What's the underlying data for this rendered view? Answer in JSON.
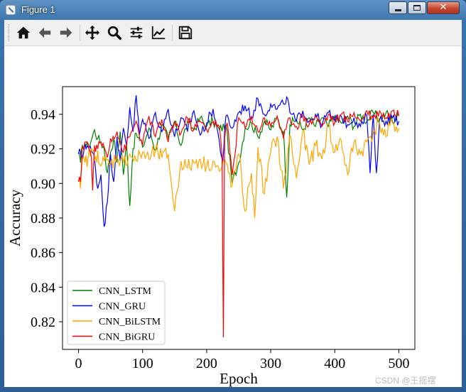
{
  "window": {
    "title": "Figure 1",
    "close_glyph": "✕"
  },
  "toolbar": {
    "icons": [
      "home-icon",
      "back-arrow-icon",
      "forward-arrow-icon",
      "pan-move-icon",
      "zoom-magnifier-icon",
      "configure-subplots-icon",
      "edit-axis-icon",
      "save-floppy-icon"
    ]
  },
  "watermark": "CSDN @王摇摆",
  "chart_data": {
    "type": "line",
    "xlabel": "Epoch",
    "ylabel": "Accuracy",
    "xlim": [
      -25,
      525
    ],
    "ylim": [
      0.804,
      0.956
    ],
    "xticks": [
      0,
      100,
      200,
      300,
      400,
      500
    ],
    "yticks": [
      0.82,
      0.84,
      0.86,
      0.88,
      0.9,
      0.92,
      0.94
    ],
    "ytick_labels": [
      "0.82",
      "0.84",
      "0.86",
      "0.88",
      "0.90",
      "0.92",
      "0.94"
    ],
    "legend_placement": "lower-left",
    "grid": false,
    "series": [
      {
        "name": "CNN_LSTM",
        "color": "#008000",
        "points": [
          [
            0,
            0.918
          ],
          [
            3,
            0.912
          ],
          [
            6,
            0.922
          ],
          [
            10,
            0.923
          ],
          [
            15,
            0.921
          ],
          [
            20,
            0.925
          ],
          [
            25,
            0.931
          ],
          [
            30,
            0.926
          ],
          [
            35,
            0.924
          ],
          [
            40,
            0.92
          ],
          [
            45,
            0.906
          ],
          [
            50,
            0.918
          ],
          [
            55,
            0.926
          ],
          [
            60,
            0.912
          ],
          [
            65,
            0.93
          ],
          [
            70,
            0.905
          ],
          [
            75,
            0.923
          ],
          [
            80,
            0.887
          ],
          [
            85,
            0.92
          ],
          [
            90,
            0.929
          ],
          [
            100,
            0.921
          ],
          [
            110,
            0.932
          ],
          [
            120,
            0.919
          ],
          [
            130,
            0.934
          ],
          [
            140,
            0.926
          ],
          [
            150,
            0.936
          ],
          [
            160,
            0.922
          ],
          [
            170,
            0.936
          ],
          [
            180,
            0.931
          ],
          [
            190,
            0.938
          ],
          [
            200,
            0.933
          ],
          [
            210,
            0.936
          ],
          [
            220,
            0.931
          ],
          [
            230,
            0.934
          ],
          [
            240,
            0.9
          ],
          [
            250,
            0.912
          ],
          [
            260,
            0.932
          ],
          [
            270,
            0.935
          ],
          [
            280,
            0.927
          ],
          [
            290,
            0.936
          ],
          [
            300,
            0.931
          ],
          [
            310,
            0.938
          ],
          [
            320,
            0.93
          ],
          [
            325,
            0.892
          ],
          [
            330,
            0.934
          ],
          [
            340,
            0.937
          ],
          [
            350,
            0.931
          ],
          [
            360,
            0.938
          ],
          [
            370,
            0.933
          ],
          [
            380,
            0.938
          ],
          [
            390,
            0.933
          ],
          [
            400,
            0.939
          ],
          [
            410,
            0.935
          ],
          [
            420,
            0.939
          ],
          [
            430,
            0.933
          ],
          [
            440,
            0.94
          ],
          [
            450,
            0.936
          ],
          [
            460,
            0.941
          ],
          [
            470,
            0.937
          ],
          [
            480,
            0.941
          ],
          [
            490,
            0.936
          ],
          [
            500,
            0.939
          ]
        ]
      },
      {
        "name": "CNN_GRU",
        "color": "#0000ff",
        "points": [
          [
            0,
            0.917
          ],
          [
            3,
            0.918
          ],
          [
            6,
            0.914
          ],
          [
            10,
            0.923
          ],
          [
            15,
            0.921
          ],
          [
            20,
            0.919
          ],
          [
            25,
            0.914
          ],
          [
            30,
            0.897
          ],
          [
            35,
            0.905
          ],
          [
            40,
            0.875
          ],
          [
            45,
            0.889
          ],
          [
            50,
            0.917
          ],
          [
            55,
            0.901
          ],
          [
            60,
            0.927
          ],
          [
            65,
            0.913
          ],
          [
            70,
            0.932
          ],
          [
            75,
            0.922
          ],
          [
            80,
            0.944
          ],
          [
            85,
            0.93
          ],
          [
            90,
            0.951
          ],
          [
            95,
            0.928
          ],
          [
            100,
            0.937
          ],
          [
            110,
            0.926
          ],
          [
            120,
            0.941
          ],
          [
            130,
            0.93
          ],
          [
            140,
            0.943
          ],
          [
            150,
            0.927
          ],
          [
            160,
            0.938
          ],
          [
            170,
            0.93
          ],
          [
            180,
            0.942
          ],
          [
            190,
            0.928
          ],
          [
            200,
            0.935
          ],
          [
            210,
            0.943
          ],
          [
            220,
            0.924
          ],
          [
            225,
            0.912
          ],
          [
            230,
            0.939
          ],
          [
            240,
            0.932
          ],
          [
            250,
            0.941
          ],
          [
            260,
            0.945
          ],
          [
            270,
            0.938
          ],
          [
            280,
            0.949
          ],
          [
            290,
            0.94
          ],
          [
            300,
            0.946
          ],
          [
            310,
            0.943
          ],
          [
            320,
            0.946
          ],
          [
            325,
            0.95
          ],
          [
            330,
            0.941
          ],
          [
            340,
            0.936
          ],
          [
            350,
            0.942
          ],
          [
            360,
            0.936
          ],
          [
            370,
            0.94
          ],
          [
            380,
            0.934
          ],
          [
            390,
            0.941
          ],
          [
            400,
            0.936
          ],
          [
            410,
            0.939
          ],
          [
            420,
            0.934
          ],
          [
            430,
            0.938
          ],
          [
            440,
            0.933
          ],
          [
            450,
            0.939
          ],
          [
            455,
            0.906
          ],
          [
            460,
            0.94
          ],
          [
            465,
            0.906
          ],
          [
            470,
            0.937
          ],
          [
            480,
            0.936
          ],
          [
            490,
            0.938
          ],
          [
            500,
            0.936
          ]
        ]
      },
      {
        "name": "CNN_BiLSTM",
        "color": "#ffa500",
        "points": [
          [
            0,
            0.901
          ],
          [
            3,
            0.897
          ],
          [
            6,
            0.914
          ],
          [
            10,
            0.912
          ],
          [
            15,
            0.915
          ],
          [
            20,
            0.92
          ],
          [
            25,
            0.913
          ],
          [
            30,
            0.919
          ],
          [
            35,
            0.91
          ],
          [
            40,
            0.913
          ],
          [
            50,
            0.911
          ],
          [
            60,
            0.916
          ],
          [
            70,
            0.912
          ],
          [
            80,
            0.917
          ],
          [
            90,
            0.913
          ],
          [
            100,
            0.918
          ],
          [
            110,
            0.914
          ],
          [
            120,
            0.919
          ],
          [
            130,
            0.915
          ],
          [
            140,
            0.917
          ],
          [
            150,
            0.884
          ],
          [
            160,
            0.913
          ],
          [
            170,
            0.909
          ],
          [
            180,
            0.912
          ],
          [
            190,
            0.914
          ],
          [
            200,
            0.91
          ],
          [
            210,
            0.913
          ],
          [
            220,
            0.907
          ],
          [
            230,
            0.912
          ],
          [
            240,
            0.899
          ],
          [
            250,
            0.917
          ],
          [
            260,
            0.884
          ],
          [
            270,
            0.906
          ],
          [
            275,
            0.88
          ],
          [
            280,
            0.921
          ],
          [
            290,
            0.894
          ],
          [
            300,
            0.918
          ],
          [
            310,
            0.927
          ],
          [
            320,
            0.897
          ],
          [
            330,
            0.928
          ],
          [
            340,
            0.903
          ],
          [
            350,
            0.93
          ],
          [
            360,
            0.911
          ],
          [
            370,
            0.922
          ],
          [
            380,
            0.914
          ],
          [
            390,
            0.934
          ],
          [
            400,
            0.918
          ],
          [
            410,
            0.925
          ],
          [
            420,
            0.905
          ],
          [
            430,
            0.924
          ],
          [
            440,
            0.917
          ],
          [
            450,
            0.924
          ],
          [
            460,
            0.93
          ],
          [
            470,
            0.935
          ],
          [
            480,
            0.927
          ],
          [
            490,
            0.935
          ],
          [
            500,
            0.932
          ]
        ]
      },
      {
        "name": "CNN_BiGRU",
        "color": "#ff0000",
        "points": [
          [
            0,
            0.901
          ],
          [
            3,
            0.901
          ],
          [
            6,
            0.921
          ],
          [
            10,
            0.924
          ],
          [
            15,
            0.923
          ],
          [
            20,
            0.915
          ],
          [
            22,
            0.896
          ],
          [
            25,
            0.922
          ],
          [
            30,
            0.92
          ],
          [
            35,
            0.924
          ],
          [
            40,
            0.921
          ],
          [
            45,
            0.915
          ],
          [
            50,
            0.926
          ],
          [
            60,
            0.93
          ],
          [
            70,
            0.918
          ],
          [
            80,
            0.927
          ],
          [
            90,
            0.936
          ],
          [
            100,
            0.922
          ],
          [
            110,
            0.939
          ],
          [
            120,
            0.927
          ],
          [
            130,
            0.937
          ],
          [
            140,
            0.924
          ],
          [
            150,
            0.936
          ],
          [
            160,
            0.929
          ],
          [
            170,
            0.938
          ],
          [
            180,
            0.931
          ],
          [
            190,
            0.936
          ],
          [
            200,
            0.931
          ],
          [
            210,
            0.936
          ],
          [
            220,
            0.933
          ],
          [
            224,
            0.916
          ],
          [
            226,
            0.811
          ],
          [
            228,
            0.926
          ],
          [
            232,
            0.935
          ],
          [
            240,
            0.905
          ],
          [
            250,
            0.938
          ],
          [
            260,
            0.932
          ],
          [
            270,
            0.939
          ],
          [
            280,
            0.93
          ],
          [
            290,
            0.938
          ],
          [
            300,
            0.933
          ],
          [
            310,
            0.939
          ],
          [
            320,
            0.926
          ],
          [
            330,
            0.938
          ],
          [
            340,
            0.933
          ],
          [
            350,
            0.939
          ],
          [
            360,
            0.934
          ],
          [
            370,
            0.939
          ],
          [
            380,
            0.933
          ],
          [
            390,
            0.94
          ],
          [
            400,
            0.935
          ],
          [
            410,
            0.94
          ],
          [
            420,
            0.936
          ],
          [
            430,
            0.941
          ],
          [
            440,
            0.936
          ],
          [
            450,
            0.942
          ],
          [
            460,
            0.938
          ],
          [
            470,
            0.942
          ],
          [
            480,
            0.938
          ],
          [
            490,
            0.942
          ],
          [
            500,
            0.939
          ]
        ]
      }
    ]
  }
}
